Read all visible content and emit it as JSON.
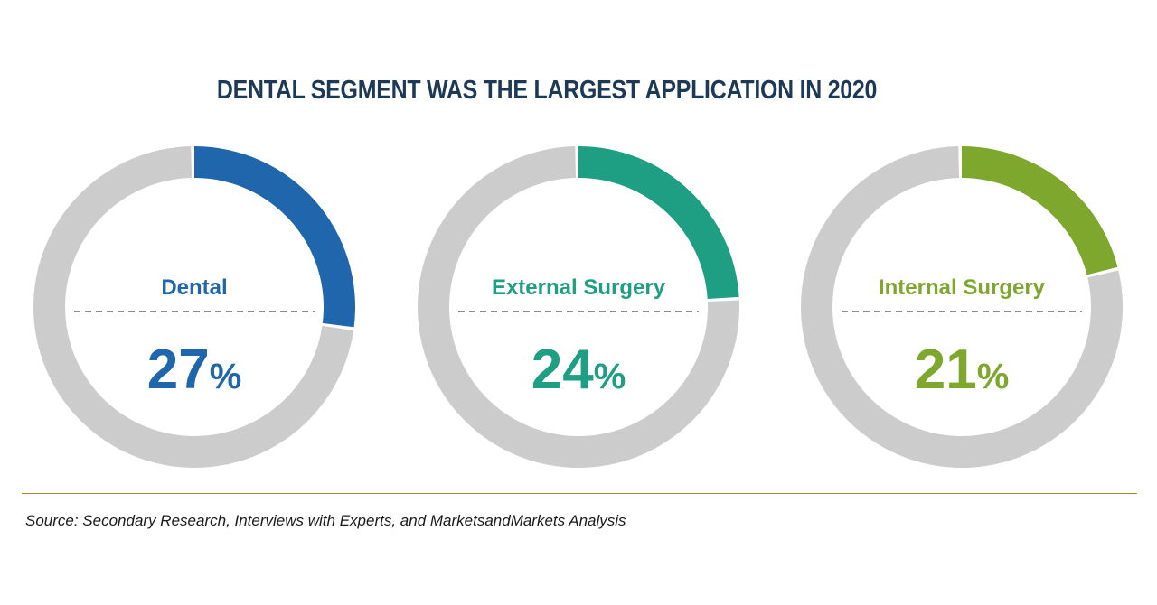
{
  "chart_data": {
    "type": "donut",
    "title": "DENTAL SEGMENT WAS THE LARGEST APPLICATION IN 2020",
    "unit": "%",
    "segments": [
      {
        "name": "Dental",
        "value": 27,
        "display": "27",
        "color": "#1f66ad"
      },
      {
        "name": "External Surgery",
        "value": 24,
        "display": "24",
        "color": "#1e9e82"
      },
      {
        "name": "Internal Surgery",
        "value": 21,
        "display": "21",
        "color": "#7ea72e"
      }
    ],
    "remainder_color": "#cccccc",
    "divider_color": "#8c8c8c"
  },
  "footer": {
    "source": "Source: Secondary Research, Interviews with Experts, and MarketsandMarkets Analysis"
  }
}
